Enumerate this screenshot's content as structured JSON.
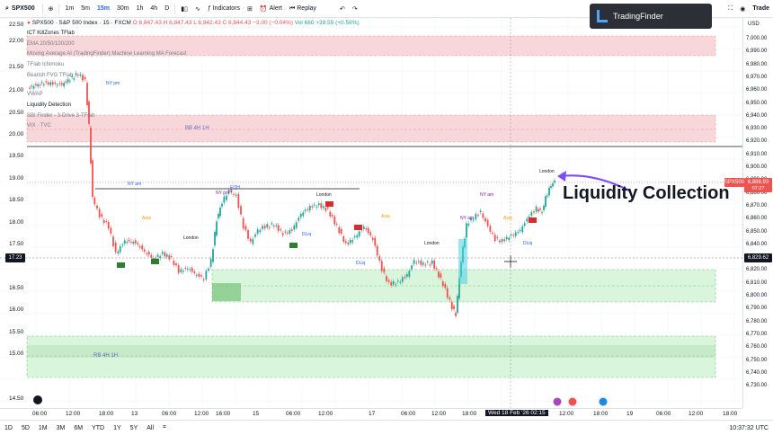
{
  "toolbar": {
    "symbol": "SPX500",
    "intervals": [
      "1m",
      "5m",
      "15m",
      "30m",
      "1h",
      "4h",
      "D"
    ],
    "active_interval": "15m",
    "indicators_label": "Indicators",
    "alert_label": "Alert",
    "replay_label": "Replay",
    "trade_label": "Trade"
  },
  "brand": {
    "name": "TradingFinder"
  },
  "legend": {
    "title": "SPX500 · S&P 500 Index · 15 · FXCM",
    "ohlc": "O 6,847.43  H 6,847.43  L 6,842.43  C 6,844.43  −3.00 (−0.04%)",
    "vol": "Vol 660  +39.55 (+0.58%)",
    "indicators": [
      "ICT KillZones TFlab",
      "EMA 20/50/100/200",
      "Moving Average AI (TradingFinder) Machine Learning MA Forecast",
      "TFlab Ichimoku",
      "Bearish FVG TFlab",
      "VWAP",
      "Liquidity Detection",
      "SBI Finder - 3-Drive 3-TFlab",
      "VIX · TVC"
    ]
  },
  "annotation": {
    "text": "Liquidity Collection"
  },
  "zones": {
    "bb_label": "BB 4H 1H",
    "rb_label": "RB 4H 1H"
  },
  "session_labels": [
    "NY pm",
    "NY am",
    "Asia",
    "London",
    "NY pm",
    "NY am",
    "Asia",
    "London",
    "NY am",
    "Asia",
    "London",
    "DLiq",
    "DLiq",
    "DLiq",
    "EQH"
  ],
  "left_axis": [
    "22.50",
    "22.00",
    "21.50",
    "21.00",
    "20.50",
    "20.00",
    "19.50",
    "19.00",
    "18.50",
    "18.00",
    "17.50",
    "17.23",
    "16.50",
    "16.00",
    "15.50",
    "15.00",
    "14.50"
  ],
  "right_axis": [
    "7,000.00",
    "6,990.00",
    "6,980.00",
    "6,970.00",
    "6,960.00",
    "6,950.00",
    "6,940.00",
    "6,930.00",
    "6,920.00",
    "6,910.00",
    "6,900.00",
    "6,890.00",
    "6,880.00",
    "6,870.00",
    "6,860.00",
    "6,850.00",
    "6,840.00",
    "6,830.00",
    "6,820.00",
    "6,810.00",
    "6,800.00",
    "6,790.00",
    "6,780.00",
    "6,770.00",
    "6,760.00",
    "6,750.00",
    "6,740.00",
    "6,730.00"
  ],
  "price_tags": {
    "current": "6,888.93",
    "countdown": "07:27",
    "cursor": "6,829.62",
    "symbol_tag": "SPX500",
    "left_cursor": "17.23",
    "currency": "USD"
  },
  "time_axis": [
    "06:00",
    "12:00",
    "18:00",
    "13",
    "06:00",
    "12:00",
    "16:00",
    "15",
    "06:00",
    "12:00",
    "17",
    "06:00",
    "12:00",
    "18:00",
    "Wed 18 Feb '26  02:15",
    "12:00",
    "18:00",
    "19",
    "06:00",
    "12:00",
    "18:00"
  ],
  "bottom_bar": {
    "ranges": [
      "1D",
      "5D",
      "1M",
      "3M",
      "6M",
      "YTD",
      "1Y",
      "5Y",
      "All"
    ],
    "clock": "10:37:32 UTC"
  },
  "colors": {
    "up": "#26a69a",
    "down": "#ef5350",
    "accent": "#2962ff",
    "bearish_zone": "#f8d7da",
    "bullish_zone": "#d4f5d8",
    "arrow": "#7c4dff"
  }
}
